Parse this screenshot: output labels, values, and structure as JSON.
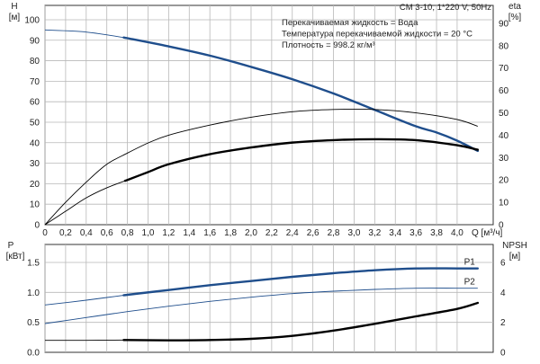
{
  "chart_data": [
    {
      "type": "line",
      "panel": "top",
      "yleft_label": [
        "H",
        "[м]"
      ],
      "yright_label": [
        "eta",
        "[%]"
      ],
      "xlabel": "Q [м³/ч]",
      "xlim": [
        0,
        4.35
      ],
      "ylim_left": [
        0,
        107
      ],
      "ylim_right": [
        0,
        98
      ],
      "x_ticks": [
        "0",
        "0,2",
        "0,4",
        "0,6",
        "0,8",
        "1,0",
        "1,2",
        "1,4",
        "1,6",
        "1,8",
        "2,0",
        "2,2",
        "2,4",
        "2,6",
        "2,8",
        "3,0",
        "3,2",
        "3,4",
        "3,6",
        "3,8",
        "4,0"
      ],
      "y_ticks_left": [
        0,
        10,
        20,
        30,
        40,
        50,
        60,
        70,
        80,
        90,
        100
      ],
      "y_ticks_right": [
        0,
        10,
        20,
        30,
        40,
        50,
        60,
        70,
        80,
        90
      ],
      "grid": true,
      "header": "CM 3-10, 1*220 V, 50Hz",
      "info_lines": [
        "Перекачиваемая жидкость = Вода",
        "Температура перекачиваемой жидкости = 20 °C",
        "Плотность = 998.2 кг/м³"
      ],
      "series": [
        {
          "axis": "left",
          "color": "#1f4e8c",
          "x": [
            0,
            0.4,
            0.8,
            1.2,
            1.6,
            2.0,
            2.4,
            2.8,
            3.2,
            3.6,
            3.8,
            4.0,
            4.2
          ],
          "y": [
            95,
            94,
            91,
            87,
            82.5,
            77,
            71,
            64,
            56,
            48,
            45,
            41,
            36
          ],
          "bold_from": 0.78,
          "bold_to": 4.2
        },
        {
          "axis": "right",
          "color": "#000000",
          "x": [
            0,
            0.2,
            0.4,
            0.6,
            0.8,
            1.0,
            1.2,
            1.6,
            2.0,
            2.4,
            2.8,
            3.2,
            3.6,
            4.0,
            4.2
          ],
          "y": [
            0,
            10,
            19,
            27,
            32,
            36.5,
            40,
            44.5,
            48,
            50.5,
            51.5,
            51.5,
            50,
            47,
            44
          ],
          "bold_from": null,
          "bold_to": null
        },
        {
          "axis": "right",
          "color": "#000000",
          "x": [
            0,
            0.2,
            0.4,
            0.6,
            0.8,
            1.0,
            1.2,
            1.6,
            2.0,
            2.4,
            2.8,
            3.2,
            3.6,
            4.0,
            4.2
          ],
          "y": [
            0,
            6,
            12,
            16.5,
            20,
            23.5,
            27,
            31.5,
            34.5,
            36.7,
            37.8,
            38.2,
            37.8,
            35.5,
            33.5
          ],
          "bold_from": 0.78,
          "bold_to": 4.2
        }
      ]
    },
    {
      "type": "line",
      "panel": "bottom",
      "yleft_label": [
        "P",
        "[кВт]"
      ],
      "yright_label": [
        "NPSH",
        "[м]"
      ],
      "xlim": [
        0,
        4.35
      ],
      "ylim_left": [
        0,
        1.8
      ],
      "ylim_right": [
        0,
        7.2
      ],
      "y_ticks_left": [
        "0.0",
        "0.5",
        "1.0",
        "1.5"
      ],
      "y_ticks_left_values": [
        0,
        0.5,
        1.0,
        1.5
      ],
      "y_ticks_right": [
        0,
        2,
        4,
        6
      ],
      "grid": true,
      "series": [
        {
          "name": "P1",
          "axis": "left",
          "color": "#1f4e8c",
          "x": [
            0,
            0.4,
            0.8,
            1.2,
            1.6,
            2.0,
            2.4,
            2.8,
            3.2,
            3.6,
            4.0,
            4.2
          ],
          "y": [
            0.79,
            0.87,
            0.96,
            1.04,
            1.12,
            1.19,
            1.26,
            1.32,
            1.37,
            1.4,
            1.4,
            1.4
          ],
          "bold_from": 0.78,
          "bold_to": 4.2
        },
        {
          "name": "P2",
          "axis": "left",
          "color": "#1f4e8c",
          "x": [
            0,
            0.4,
            0.8,
            1.2,
            1.6,
            2.0,
            2.4,
            2.8,
            3.2,
            3.6,
            4.0,
            4.2
          ],
          "y": [
            0.48,
            0.58,
            0.68,
            0.77,
            0.85,
            0.92,
            0.98,
            1.02,
            1.05,
            1.07,
            1.07,
            1.07
          ],
          "bold_from": null,
          "bold_to": null
        },
        {
          "axis": "right",
          "color": "#000000",
          "x": [
            0,
            0.4,
            0.8,
            1.2,
            1.6,
            2.0,
            2.4,
            2.8,
            3.2,
            3.6,
            4.0,
            4.2
          ],
          "y": [
            0.8,
            0.8,
            0.82,
            0.8,
            0.82,
            0.9,
            1.1,
            1.45,
            1.9,
            2.4,
            2.9,
            3.3
          ],
          "bold_from": 0.78,
          "bold_to": 4.2
        }
      ]
    }
  ]
}
